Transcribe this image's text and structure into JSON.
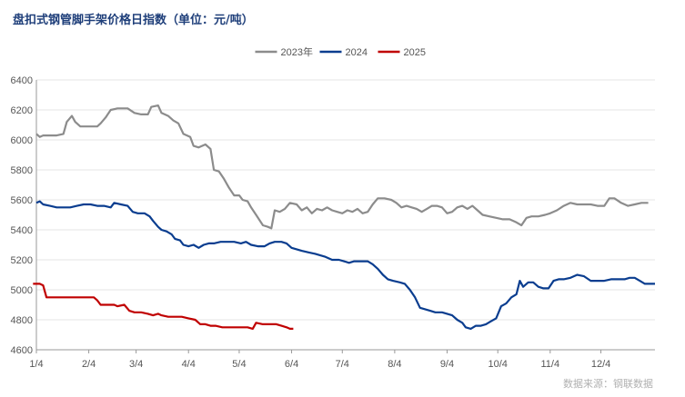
{
  "chart_data": {
    "type": "line",
    "title": "盘扣式钢管脚手架价格日指数（单位：元/吨）",
    "source": "数据来源：钢联数据",
    "ylim": [
      4600,
      6400
    ],
    "yticks": [
      "4600",
      "4800",
      "5000",
      "5200",
      "5400",
      "5600",
      "5800",
      "6000",
      "6200",
      "6400"
    ],
    "xticks": [
      "1/4",
      "2/4",
      "3/4",
      "4/4",
      "5/4",
      "6/4",
      "7/4",
      "8/4",
      "9/4",
      "10/4",
      "11/4",
      "12/4"
    ],
    "xticks_day": [
      4,
      35,
      63,
      94,
      124,
      155,
      185,
      216,
      247,
      277,
      308,
      338
    ],
    "xlim_day": [
      4,
      370
    ],
    "grid": "horizontal",
    "legend_position": "top",
    "series": [
      {
        "name": "2023年",
        "color": "#8c8c8c",
        "points": [
          [
            4,
            6040
          ],
          [
            6,
            6020
          ],
          [
            8,
            6030
          ],
          [
            12,
            6030
          ],
          [
            16,
            6030
          ],
          [
            20,
            6040
          ],
          [
            22,
            6120
          ],
          [
            25,
            6160
          ],
          [
            27,
            6120
          ],
          [
            30,
            6090
          ],
          [
            36,
            6090
          ],
          [
            40,
            6090
          ],
          [
            42,
            6110
          ],
          [
            45,
            6150
          ],
          [
            48,
            6200
          ],
          [
            52,
            6210
          ],
          [
            58,
            6210
          ],
          [
            62,
            6180
          ],
          [
            66,
            6170
          ],
          [
            70,
            6170
          ],
          [
            72,
            6220
          ],
          [
            76,
            6230
          ],
          [
            78,
            6180
          ],
          [
            82,
            6160
          ],
          [
            85,
            6130
          ],
          [
            88,
            6110
          ],
          [
            91,
            6040
          ],
          [
            95,
            6020
          ],
          [
            97,
            5960
          ],
          [
            100,
            5950
          ],
          [
            104,
            5970
          ],
          [
            107,
            5940
          ],
          [
            109,
            5800
          ],
          [
            112,
            5790
          ],
          [
            115,
            5740
          ],
          [
            118,
            5680
          ],
          [
            121,
            5630
          ],
          [
            124,
            5630
          ],
          [
            126,
            5600
          ],
          [
            129,
            5590
          ],
          [
            131,
            5550
          ],
          [
            134,
            5500
          ],
          [
            138,
            5430
          ],
          [
            141,
            5420
          ],
          [
            143,
            5410
          ],
          [
            145,
            5530
          ],
          [
            148,
            5520
          ],
          [
            151,
            5540
          ],
          [
            154,
            5580
          ],
          [
            158,
            5570
          ],
          [
            161,
            5530
          ],
          [
            164,
            5550
          ],
          [
            167,
            5510
          ],
          [
            170,
            5540
          ],
          [
            173,
            5530
          ],
          [
            176,
            5550
          ],
          [
            179,
            5530
          ],
          [
            182,
            5520
          ],
          [
            185,
            5510
          ],
          [
            188,
            5530
          ],
          [
            191,
            5520
          ],
          [
            194,
            5540
          ],
          [
            197,
            5510
          ],
          [
            200,
            5520
          ],
          [
            203,
            5570
          ],
          [
            206,
            5610
          ],
          [
            210,
            5610
          ],
          [
            214,
            5600
          ],
          [
            217,
            5580
          ],
          [
            220,
            5550
          ],
          [
            223,
            5560
          ],
          [
            226,
            5550
          ],
          [
            229,
            5540
          ],
          [
            232,
            5520
          ],
          [
            235,
            5540
          ],
          [
            238,
            5560
          ],
          [
            241,
            5560
          ],
          [
            244,
            5550
          ],
          [
            247,
            5510
          ],
          [
            250,
            5520
          ],
          [
            253,
            5550
          ],
          [
            256,
            5560
          ],
          [
            259,
            5540
          ],
          [
            262,
            5560
          ],
          [
            265,
            5530
          ],
          [
            268,
            5500
          ],
          [
            272,
            5490
          ],
          [
            276,
            5480
          ],
          [
            280,
            5470
          ],
          [
            284,
            5470
          ],
          [
            288,
            5450
          ],
          [
            291,
            5430
          ],
          [
            294,
            5480
          ],
          [
            297,
            5490
          ],
          [
            301,
            5490
          ],
          [
            305,
            5500
          ],
          [
            308,
            5510
          ],
          [
            312,
            5530
          ],
          [
            316,
            5560
          ],
          [
            320,
            5580
          ],
          [
            324,
            5570
          ],
          [
            328,
            5570
          ],
          [
            332,
            5570
          ],
          [
            336,
            5560
          ],
          [
            340,
            5560
          ],
          [
            343,
            5610
          ],
          [
            346,
            5610
          ],
          [
            350,
            5580
          ],
          [
            354,
            5560
          ],
          [
            358,
            5570
          ],
          [
            362,
            5580
          ],
          [
            366,
            5580
          ]
        ]
      },
      {
        "name": "2024",
        "color": "#0a3d8f",
        "points": [
          [
            4,
            5580
          ],
          [
            6,
            5590
          ],
          [
            8,
            5570
          ],
          [
            12,
            5560
          ],
          [
            16,
            5550
          ],
          [
            20,
            5550
          ],
          [
            24,
            5550
          ],
          [
            28,
            5560
          ],
          [
            32,
            5570
          ],
          [
            36,
            5570
          ],
          [
            40,
            5560
          ],
          [
            44,
            5560
          ],
          [
            48,
            5550
          ],
          [
            50,
            5580
          ],
          [
            54,
            5570
          ],
          [
            58,
            5560
          ],
          [
            61,
            5520
          ],
          [
            64,
            5510
          ],
          [
            68,
            5510
          ],
          [
            71,
            5490
          ],
          [
            73,
            5460
          ],
          [
            76,
            5420
          ],
          [
            78,
            5400
          ],
          [
            81,
            5390
          ],
          [
            84,
            5370
          ],
          [
            86,
            5340
          ],
          [
            89,
            5330
          ],
          [
            91,
            5300
          ],
          [
            94,
            5290
          ],
          [
            97,
            5300
          ],
          [
            100,
            5280
          ],
          [
            103,
            5300
          ],
          [
            106,
            5310
          ],
          [
            109,
            5310
          ],
          [
            113,
            5320
          ],
          [
            117,
            5320
          ],
          [
            121,
            5320
          ],
          [
            125,
            5310
          ],
          [
            128,
            5320
          ],
          [
            131,
            5300
          ],
          [
            135,
            5290
          ],
          [
            139,
            5290
          ],
          [
            142,
            5310
          ],
          [
            145,
            5320
          ],
          [
            149,
            5320
          ],
          [
            152,
            5310
          ],
          [
            155,
            5280
          ],
          [
            158,
            5270
          ],
          [
            161,
            5260
          ],
          [
            165,
            5250
          ],
          [
            169,
            5240
          ],
          [
            172,
            5230
          ],
          [
            175,
            5220
          ],
          [
            179,
            5200
          ],
          [
            183,
            5200
          ],
          [
            186,
            5190
          ],
          [
            189,
            5180
          ],
          [
            192,
            5190
          ],
          [
            196,
            5190
          ],
          [
            200,
            5190
          ],
          [
            203,
            5170
          ],
          [
            206,
            5140
          ],
          [
            209,
            5100
          ],
          [
            212,
            5070
          ],
          [
            215,
            5060
          ],
          [
            219,
            5050
          ],
          [
            222,
            5040
          ],
          [
            225,
            5000
          ],
          [
            228,
            4950
          ],
          [
            231,
            4880
          ],
          [
            234,
            4870
          ],
          [
            237,
            4860
          ],
          [
            240,
            4850
          ],
          [
            244,
            4850
          ],
          [
            247,
            4840
          ],
          [
            250,
            4830
          ],
          [
            253,
            4800
          ],
          [
            256,
            4780
          ],
          [
            258,
            4750
          ],
          [
            261,
            4740
          ],
          [
            264,
            4760
          ],
          [
            267,
            4760
          ],
          [
            270,
            4770
          ],
          [
            273,
            4790
          ],
          [
            276,
            4810
          ],
          [
            279,
            4890
          ],
          [
            282,
            4910
          ],
          [
            285,
            4950
          ],
          [
            288,
            4970
          ],
          [
            290,
            5060
          ],
          [
            292,
            5020
          ],
          [
            295,
            5050
          ],
          [
            298,
            5050
          ],
          [
            301,
            5020
          ],
          [
            304,
            5010
          ],
          [
            307,
            5010
          ],
          [
            310,
            5060
          ],
          [
            313,
            5070
          ],
          [
            316,
            5070
          ],
          [
            320,
            5080
          ],
          [
            324,
            5100
          ],
          [
            328,
            5090
          ],
          [
            332,
            5060
          ],
          [
            336,
            5060
          ],
          [
            340,
            5060
          ],
          [
            344,
            5070
          ],
          [
            348,
            5070
          ],
          [
            352,
            5070
          ],
          [
            355,
            5080
          ],
          [
            358,
            5080
          ],
          [
            361,
            5060
          ],
          [
            364,
            5040
          ],
          [
            366,
            5040
          ],
          [
            370,
            5040
          ]
        ]
      },
      {
        "name": "2025",
        "color": "#c00000",
        "points": [
          [
            2,
            5040
          ],
          [
            6,
            5040
          ],
          [
            8,
            5030
          ],
          [
            10,
            4950
          ],
          [
            14,
            4950
          ],
          [
            18,
            4950
          ],
          [
            22,
            4950
          ],
          [
            26,
            4950
          ],
          [
            30,
            4950
          ],
          [
            34,
            4950
          ],
          [
            38,
            4950
          ],
          [
            40,
            4930
          ],
          [
            42,
            4900
          ],
          [
            46,
            4900
          ],
          [
            50,
            4900
          ],
          [
            52,
            4890
          ],
          [
            56,
            4900
          ],
          [
            59,
            4860
          ],
          [
            62,
            4850
          ],
          [
            66,
            4850
          ],
          [
            70,
            4840
          ],
          [
            73,
            4830
          ],
          [
            76,
            4840
          ],
          [
            78,
            4830
          ],
          [
            82,
            4820
          ],
          [
            86,
            4820
          ],
          [
            90,
            4820
          ],
          [
            94,
            4810
          ],
          [
            98,
            4800
          ],
          [
            101,
            4770
          ],
          [
            104,
            4770
          ],
          [
            107,
            4760
          ],
          [
            110,
            4760
          ],
          [
            114,
            4750
          ],
          [
            118,
            4750
          ],
          [
            122,
            4750
          ],
          [
            126,
            4750
          ],
          [
            129,
            4750
          ],
          [
            132,
            4740
          ],
          [
            134,
            4780
          ],
          [
            138,
            4770
          ],
          [
            142,
            4770
          ],
          [
            146,
            4770
          ],
          [
            149,
            4760
          ],
          [
            152,
            4750
          ],
          [
            154,
            4740
          ],
          [
            156,
            4740
          ]
        ]
      }
    ]
  }
}
